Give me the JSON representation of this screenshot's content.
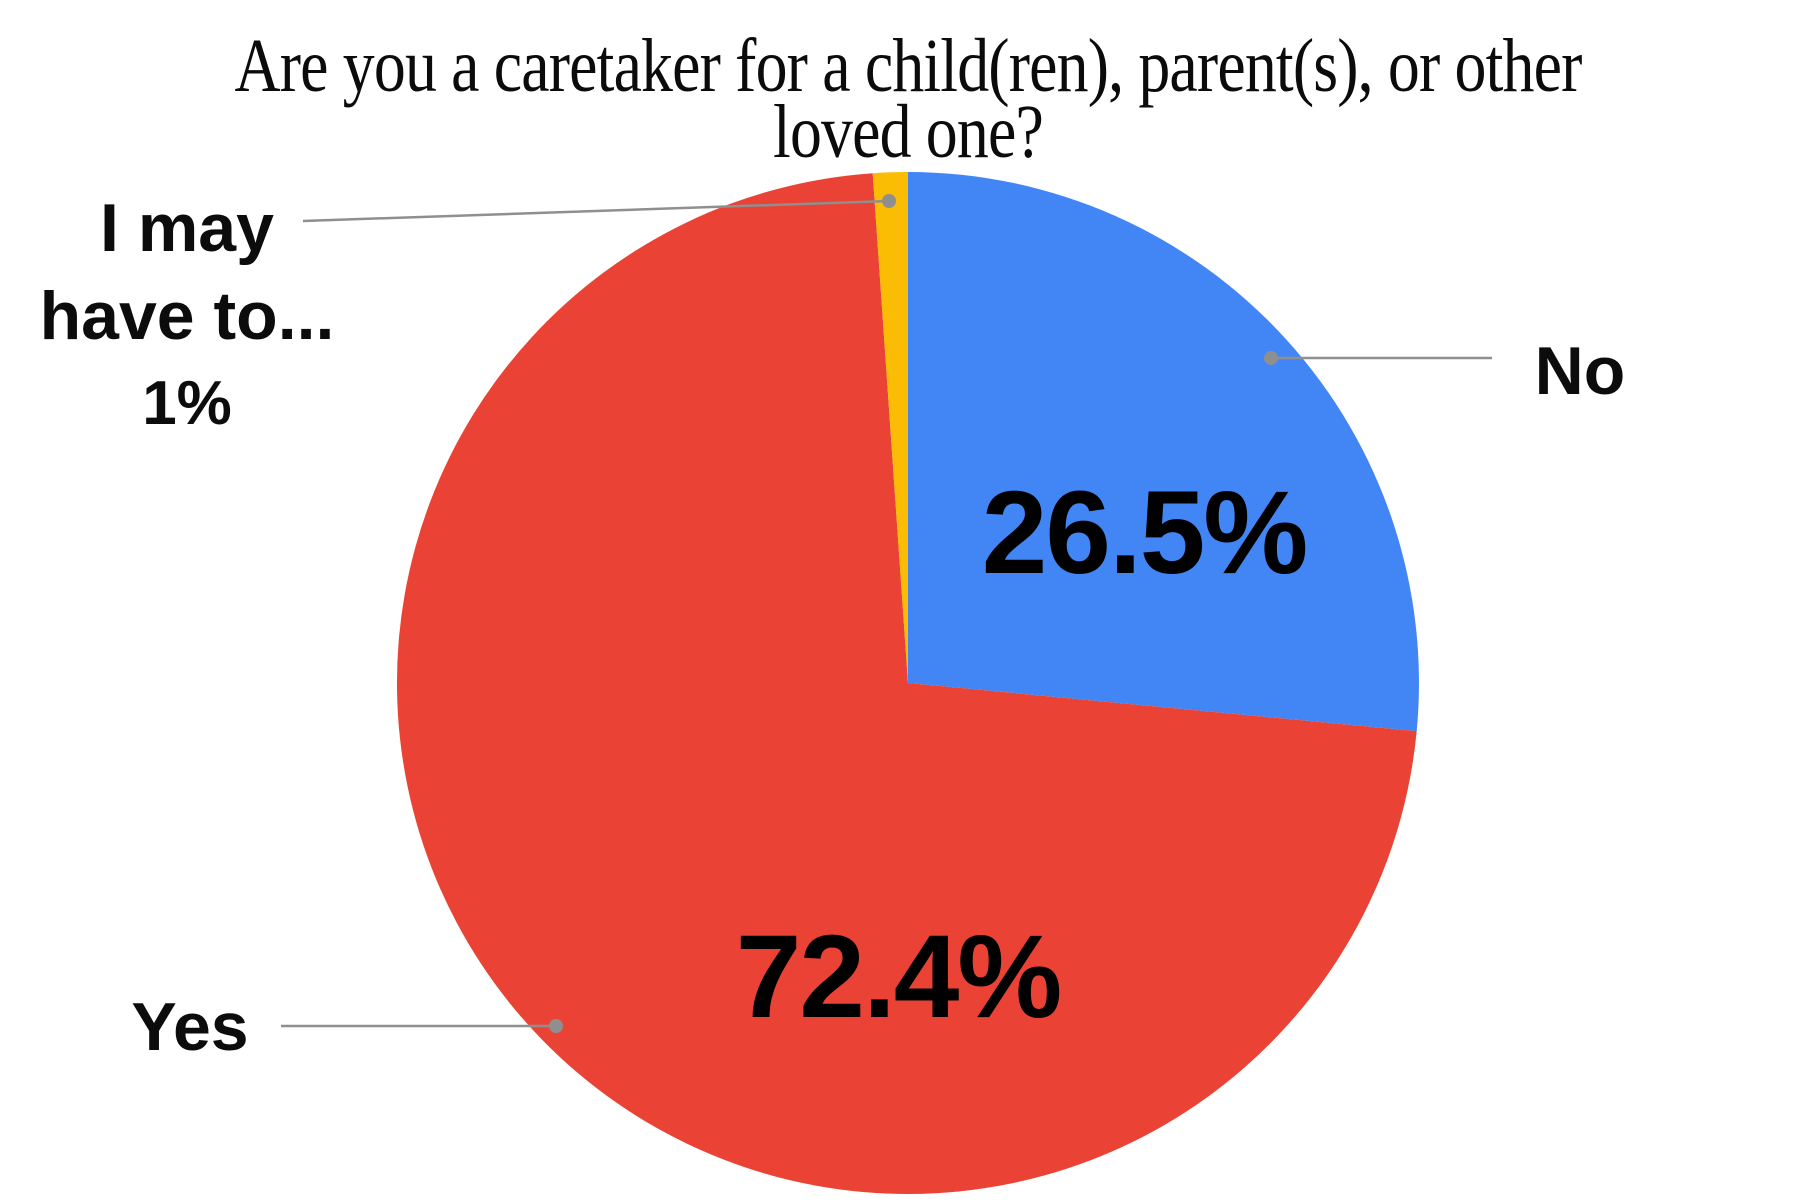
{
  "chart_data": {
    "type": "pie",
    "title": "Are you a caretaker for a child(ren), parent(s), or other loved one?",
    "title_lines": [
      "Are you a caretaker for a child(ren), parent(s), or other",
      "loved one?"
    ],
    "direction": "clockwise",
    "start_angle_deg": 0,
    "legend_position": "outside-callout-labels",
    "grid": false,
    "slices": [
      {
        "label": "No",
        "pct": 26.5,
        "pct_label": "26.5%",
        "color": "#4285F4"
      },
      {
        "label": "Yes",
        "pct": 72.4,
        "pct_label": "72.4%",
        "color": "#EA4335"
      },
      {
        "label": "I may have to...",
        "label_lines": [
          "I may",
          "have to..."
        ],
        "pct": 1.1,
        "pct_label": "1%",
        "color": "#FBBC04"
      }
    ],
    "colors": {
      "background": "#ffffff",
      "label_text": "#000000",
      "leader_line": "#8f8f8f"
    }
  }
}
